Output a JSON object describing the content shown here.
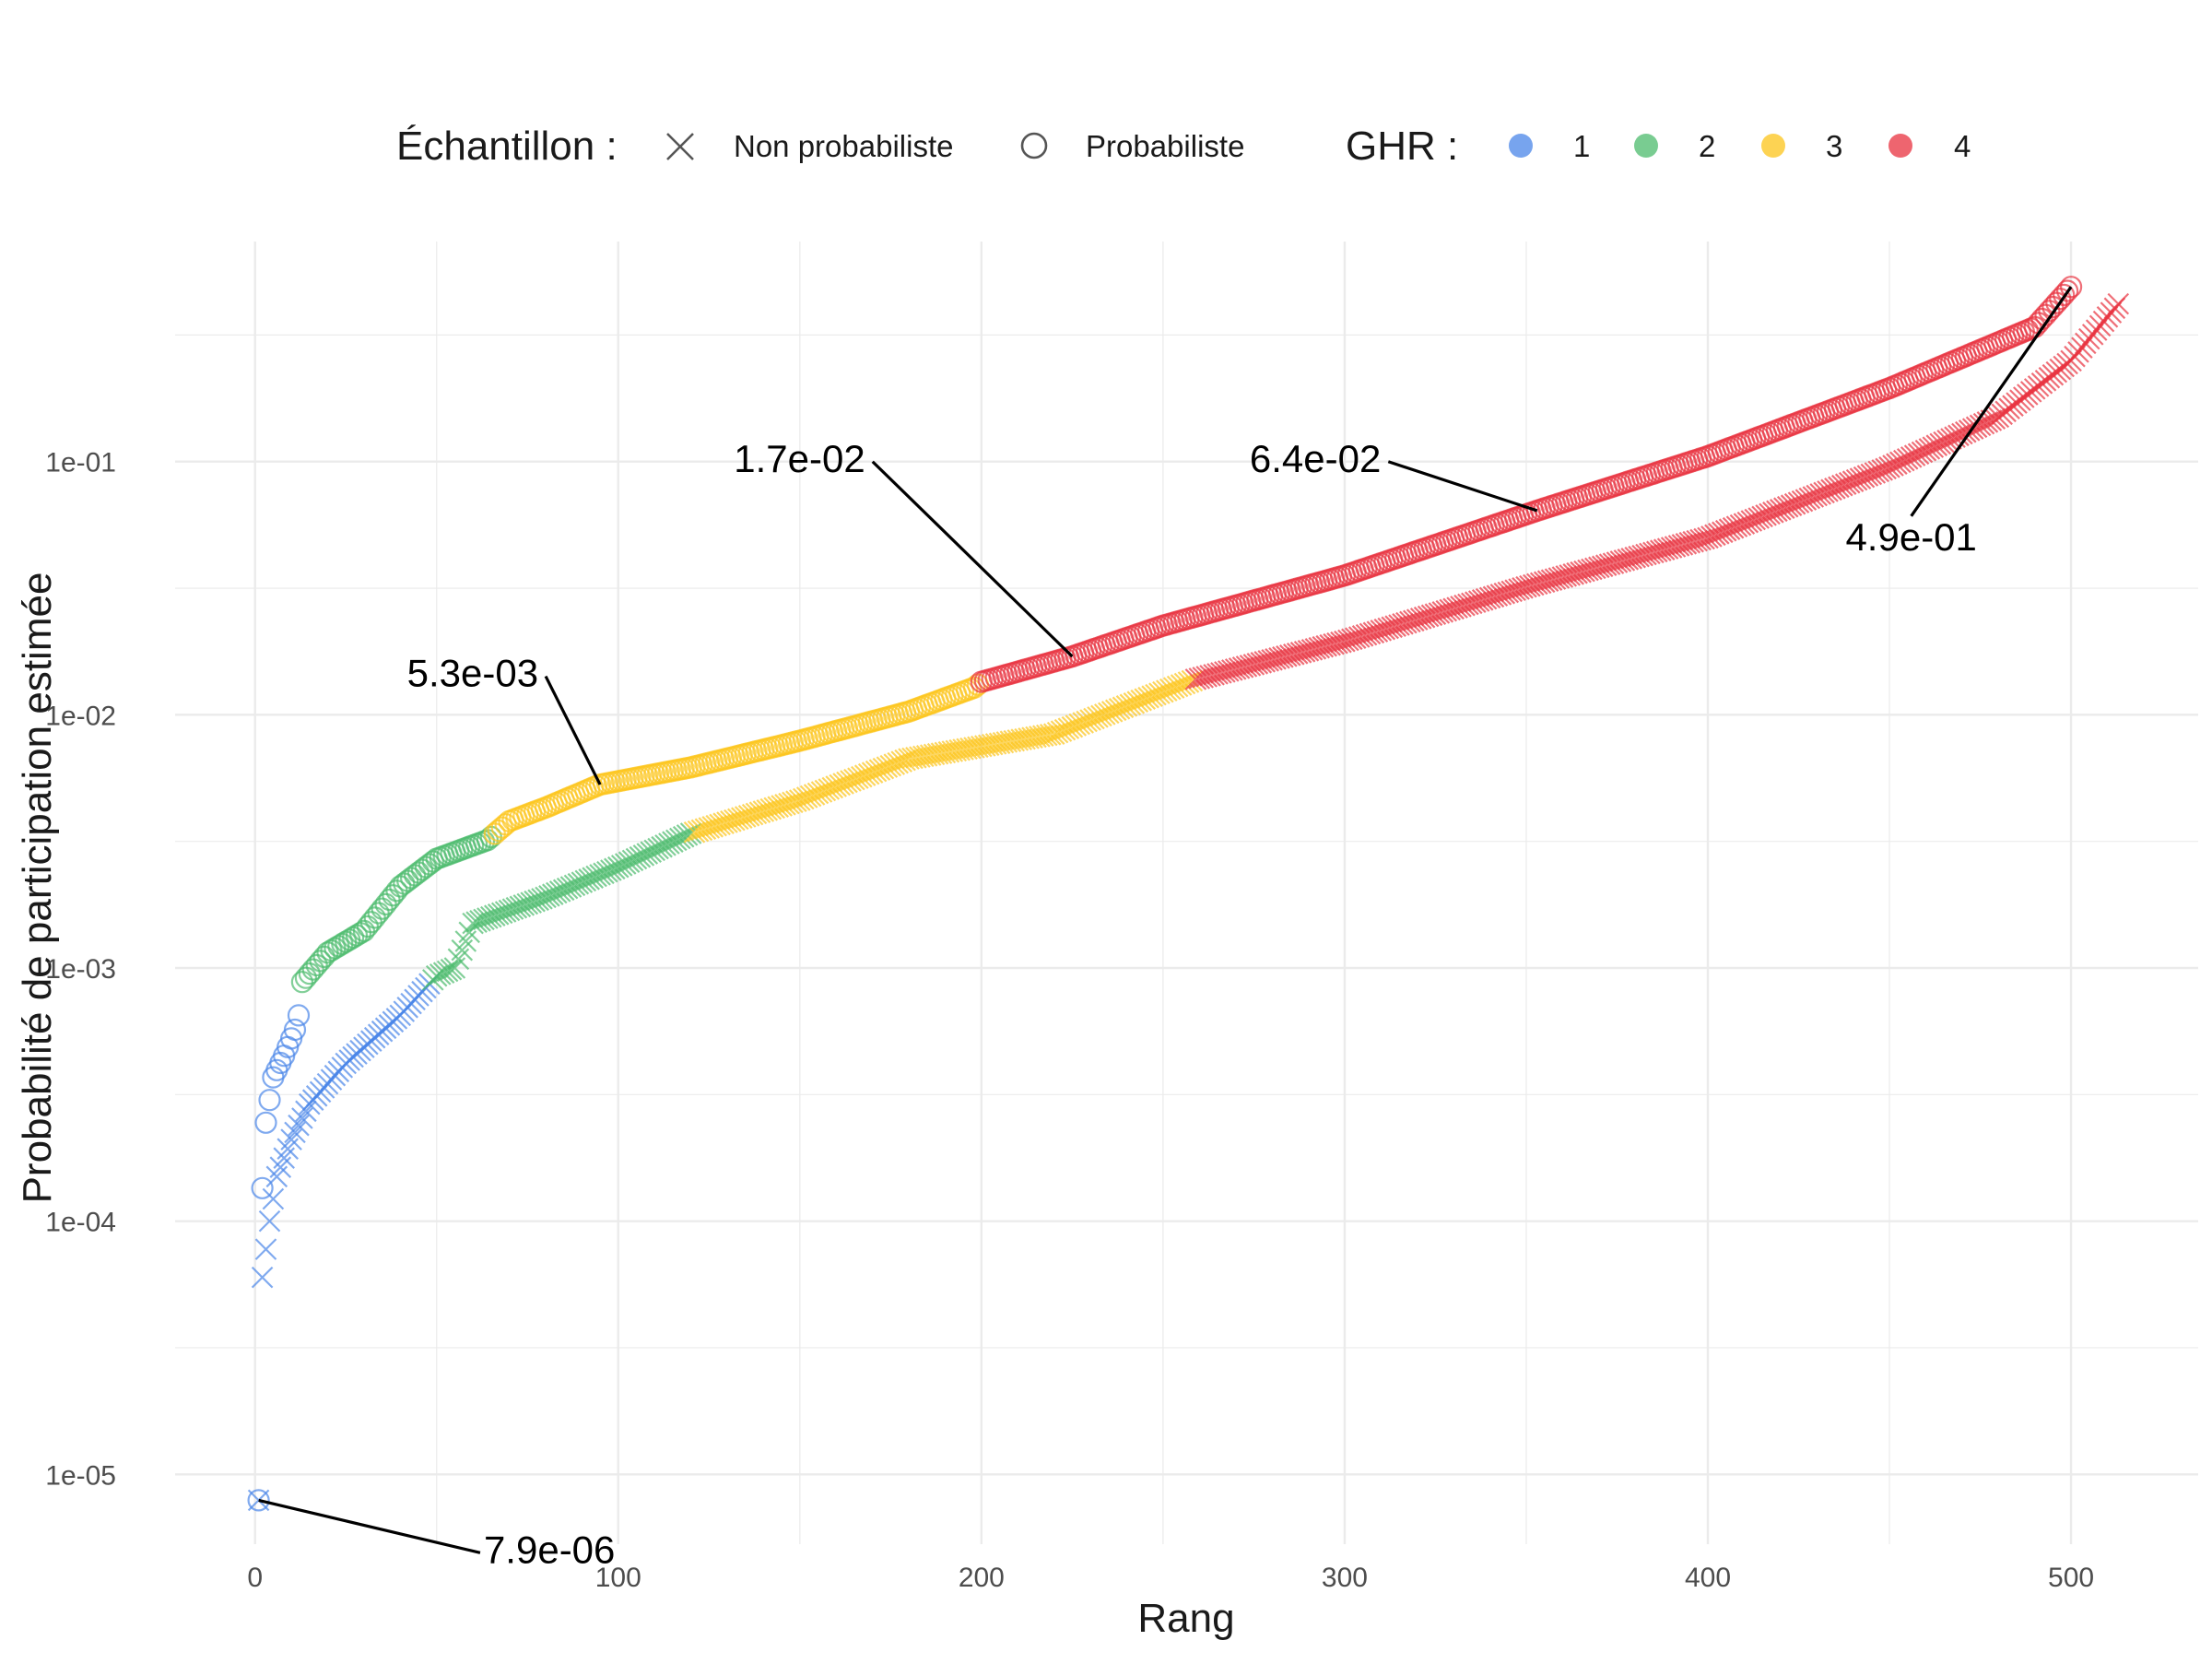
{
  "chart_data": {
    "type": "scatter",
    "xlabel": "Rang",
    "ylabel": "Probabilité de participation estimée",
    "x_ticks": [
      0,
      100,
      200,
      300,
      400,
      500
    ],
    "x_tick_labels": [
      "0",
      "100",
      "200",
      "300",
      "400",
      "500"
    ],
    "xlim": [
      -22,
      535
    ],
    "y_scale": "log10",
    "y_ticks": [
      1e-05,
      0.0001,
      0.001,
      0.01,
      0.1
    ],
    "y_tick_labels": [
      "1e-05",
      "1e-04",
      "1e-03",
      "1e-02",
      "1e-01"
    ],
    "ylim": [
      5.3e-06,
      0.74
    ],
    "grid": true,
    "legend_position": "top",
    "legend": {
      "shape_title": "Échantillon :",
      "shape_entries": [
        {
          "shape": "cross",
          "label": "Non probabiliste"
        },
        {
          "shape": "circle",
          "label": "Probabiliste"
        }
      ],
      "color_title": "GHR :",
      "color_entries": [
        {
          "label": "1",
          "color": "#4a86e8"
        },
        {
          "label": "2",
          "color": "#4cbb6c"
        },
        {
          "label": "3",
          "color": "#fcc419"
        },
        {
          "label": "4",
          "color": "#e8323f"
        }
      ]
    },
    "series": [
      {
        "sample": "Probabiliste",
        "shape": "circle",
        "n": 500,
        "knots": [
          [
            1,
            7.9e-06
          ],
          [
            2,
            0.000135
          ],
          [
            3,
            0.000245
          ],
          [
            5,
            0.00037
          ],
          [
            8,
            0.00045
          ],
          [
            11,
            0.00057
          ],
          [
            12,
            0.00065
          ],
          [
            13,
            0.00088
          ],
          [
            20,
            0.00115
          ],
          [
            30,
            0.0014
          ],
          [
            40,
            0.0021
          ],
          [
            50,
            0.0027
          ],
          [
            64,
            0.0032
          ],
          [
            70,
            0.0038
          ],
          [
            80,
            0.0043
          ],
          [
            95,
            0.0053
          ],
          [
            120,
            0.0062
          ],
          [
            150,
            0.0079
          ],
          [
            180,
            0.0103
          ],
          [
            198,
            0.0128
          ],
          [
            200,
            0.0135
          ],
          [
            225,
            0.017
          ],
          [
            250,
            0.0225
          ],
          [
            300,
            0.0355
          ],
          [
            353,
            0.064
          ],
          [
            400,
            0.105
          ],
          [
            450,
            0.195
          ],
          [
            490,
            0.34
          ],
          [
            500,
            0.49
          ]
        ],
        "ghr_ranges": [
          [
            1,
            12,
            "1"
          ],
          [
            13,
            65,
            "2"
          ],
          [
            66,
            199,
            "3"
          ],
          [
            200,
            500,
            "4"
          ]
        ]
      },
      {
        "sample": "Non probabiliste",
        "shape": "cross",
        "n": 513,
        "knots": [
          [
            1,
            7.9e-06
          ],
          [
            2,
            6e-05
          ],
          [
            4,
            0.0001
          ],
          [
            6,
            0.00015
          ],
          [
            10,
            0.00021
          ],
          [
            15,
            0.00029
          ],
          [
            25,
            0.00042
          ],
          [
            40,
            0.00065
          ],
          [
            50,
            0.00093
          ],
          [
            55,
            0.001
          ],
          [
            60,
            0.0015
          ],
          [
            80,
            0.0019
          ],
          [
            100,
            0.0025
          ],
          [
            120,
            0.0034
          ],
          [
            150,
            0.0046
          ],
          [
            180,
            0.0067
          ],
          [
            220,
            0.0084
          ],
          [
            259,
            0.0138
          ],
          [
            300,
            0.0195
          ],
          [
            350,
            0.032
          ],
          [
            400,
            0.05
          ],
          [
            450,
            0.095
          ],
          [
            480,
            0.15
          ],
          [
            500,
            0.25
          ],
          [
            513,
            0.42
          ]
        ],
        "ghr_ranges": [
          [
            1,
            48,
            "1"
          ],
          [
            49,
            120,
            "2"
          ],
          [
            121,
            258,
            "3"
          ],
          [
            259,
            513,
            "4"
          ]
        ]
      }
    ],
    "annotations": [
      {
        "text": "7.9e-06",
        "point": [
          1,
          7.9e-06
        ],
        "label_at": [
          63,
          4.9e-06
        ],
        "anchor": "start"
      },
      {
        "text": "5.3e-03",
        "point": [
          95,
          0.0053
        ],
        "label_at": [
          78,
          0.0142
        ],
        "anchor": "end"
      },
      {
        "text": "1.7e-02",
        "point": [
          225,
          0.017
        ],
        "label_at": [
          168,
          0.1
        ],
        "anchor": "end"
      },
      {
        "text": "6.4e-02",
        "point": [
          353,
          0.064
        ],
        "label_at": [
          310,
          0.1
        ],
        "anchor": "end"
      },
      {
        "text": "4.9e-01",
        "point": [
          500,
          0.49
        ],
        "label_at": [
          456,
          0.049
        ],
        "anchor": "middle"
      }
    ]
  }
}
